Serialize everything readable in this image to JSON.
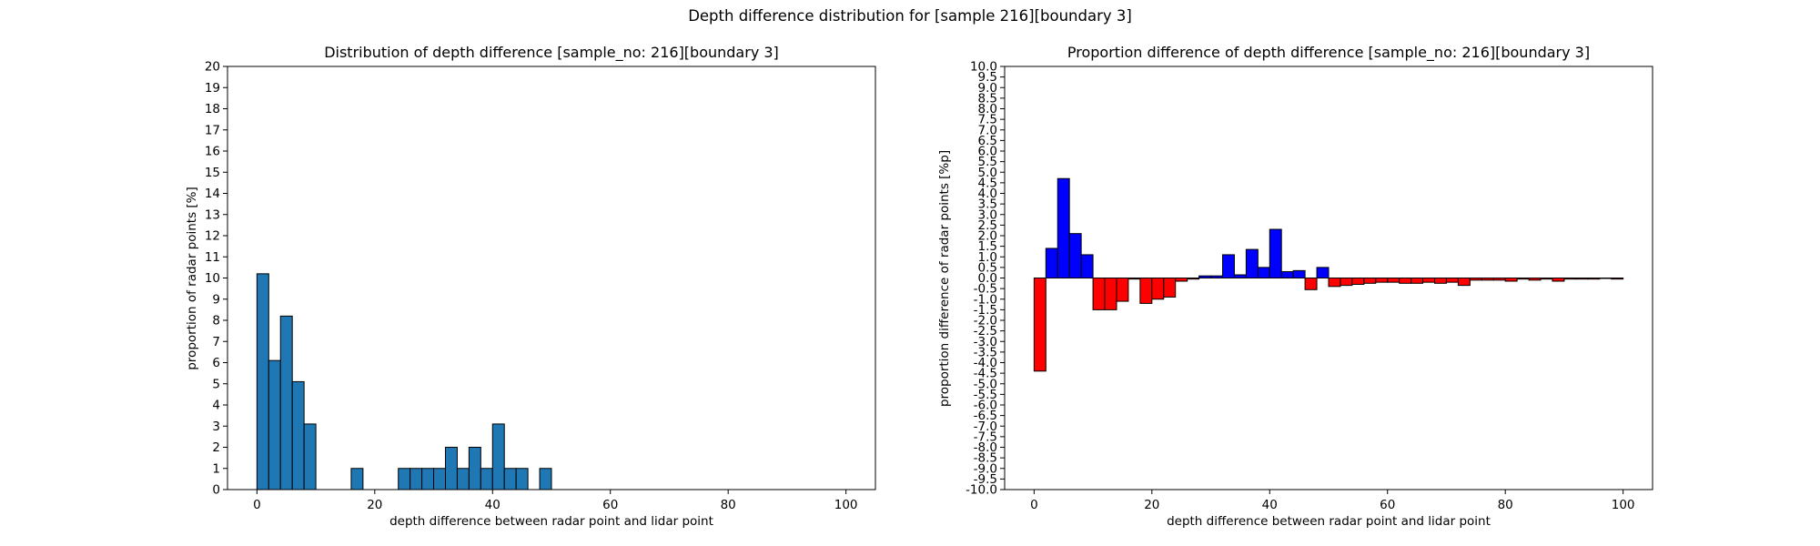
{
  "figure": {
    "suptitle": "Depth difference distribution for [sample 216][boundary 3]"
  },
  "chart_data": [
    {
      "type": "bar",
      "title": "Distribution of depth difference [sample_no: 216][boundary 3]",
      "xlabel": "depth difference between radar point and lidar point",
      "ylabel": "proportion of radar points [%]",
      "xlim": [
        -5,
        105
      ],
      "ylim": [
        0,
        20
      ],
      "xticks": [
        0,
        20,
        40,
        60,
        80,
        100
      ],
      "yticks": [
        0,
        1,
        2,
        3,
        4,
        5,
        6,
        7,
        8,
        9,
        10,
        11,
        12,
        13,
        14,
        15,
        16,
        17,
        18,
        19,
        20
      ],
      "bin_width": 2,
      "bar_color": "#1f77b4",
      "edge_color": "#000000",
      "bins": [
        {
          "x": 0,
          "value": 10.2
        },
        {
          "x": 2,
          "value": 6.1
        },
        {
          "x": 4,
          "value": 8.2
        },
        {
          "x": 6,
          "value": 5.1
        },
        {
          "x": 8,
          "value": 3.1
        },
        {
          "x": 16,
          "value": 1.0
        },
        {
          "x": 24,
          "value": 1.0
        },
        {
          "x": 26,
          "value": 1.0
        },
        {
          "x": 28,
          "value": 1.0
        },
        {
          "x": 30,
          "value": 1.0
        },
        {
          "x": 32,
          "value": 2.0
        },
        {
          "x": 34,
          "value": 1.0
        },
        {
          "x": 36,
          "value": 2.0
        },
        {
          "x": 38,
          "value": 1.0
        },
        {
          "x": 40,
          "value": 3.1
        },
        {
          "x": 42,
          "value": 1.0
        },
        {
          "x": 44,
          "value": 1.0
        },
        {
          "x": 48,
          "value": 1.0
        }
      ]
    },
    {
      "type": "bar",
      "title": "Proportion difference of depth difference [sample_no: 216][boundary 3]",
      "xlabel": "depth difference between radar point and lidar point",
      "ylabel": "proportion difference of radar points [%p]",
      "xlim": [
        -5,
        105
      ],
      "ylim": [
        -10,
        10
      ],
      "xticks": [
        0,
        20,
        40,
        60,
        80,
        100
      ],
      "yticks": [
        -10.0,
        -9.5,
        -9.0,
        -8.5,
        -8.0,
        -7.5,
        -7.0,
        -6.5,
        -6.0,
        -5.5,
        -5.0,
        -4.5,
        -4.0,
        -3.5,
        -3.0,
        -2.5,
        -2.0,
        -1.5,
        -1.0,
        -0.5,
        0.0,
        0.5,
        1.0,
        1.5,
        2.0,
        2.5,
        3.0,
        3.5,
        4.0,
        4.5,
        5.0,
        5.5,
        6.0,
        6.5,
        7.0,
        7.5,
        8.0,
        8.5,
        9.0,
        9.5,
        10.0
      ],
      "bin_width": 2,
      "positive_color": "#0000ff",
      "negative_color": "#ff0000",
      "edge_color": "#000000",
      "bins": [
        {
          "x": 0,
          "value": -4.4
        },
        {
          "x": 2,
          "value": 1.4
        },
        {
          "x": 4,
          "value": 4.7
        },
        {
          "x": 6,
          "value": 2.1
        },
        {
          "x": 8,
          "value": 1.1
        },
        {
          "x": 10,
          "value": -1.5
        },
        {
          "x": 12,
          "value": -1.5
        },
        {
          "x": 14,
          "value": -1.1
        },
        {
          "x": 16,
          "value": -0.05
        },
        {
          "x": 18,
          "value": -1.2
        },
        {
          "x": 20,
          "value": -1.0
        },
        {
          "x": 22,
          "value": -0.9
        },
        {
          "x": 24,
          "value": -0.15
        },
        {
          "x": 26,
          "value": -0.05
        },
        {
          "x": 28,
          "value": 0.1
        },
        {
          "x": 30,
          "value": 0.1
        },
        {
          "x": 32,
          "value": 1.1
        },
        {
          "x": 34,
          "value": 0.15
        },
        {
          "x": 36,
          "value": 1.35
        },
        {
          "x": 38,
          "value": 0.5
        },
        {
          "x": 40,
          "value": 2.3
        },
        {
          "x": 42,
          "value": 0.3
        },
        {
          "x": 44,
          "value": 0.35
        },
        {
          "x": 46,
          "value": -0.55
        },
        {
          "x": 48,
          "value": 0.5
        },
        {
          "x": 50,
          "value": -0.4
        },
        {
          "x": 52,
          "value": -0.35
        },
        {
          "x": 54,
          "value": -0.3
        },
        {
          "x": 56,
          "value": -0.25
        },
        {
          "x": 58,
          "value": -0.2
        },
        {
          "x": 60,
          "value": -0.2
        },
        {
          "x": 62,
          "value": -0.25
        },
        {
          "x": 64,
          "value": -0.25
        },
        {
          "x": 66,
          "value": -0.2
        },
        {
          "x": 68,
          "value": -0.25
        },
        {
          "x": 70,
          "value": -0.2
        },
        {
          "x": 72,
          "value": -0.35
        },
        {
          "x": 74,
          "value": -0.1
        },
        {
          "x": 76,
          "value": -0.1
        },
        {
          "x": 78,
          "value": -0.1
        },
        {
          "x": 80,
          "value": -0.15
        },
        {
          "x": 82,
          "value": -0.05
        },
        {
          "x": 84,
          "value": -0.1
        },
        {
          "x": 86,
          "value": -0.05
        },
        {
          "x": 88,
          "value": -0.15
        },
        {
          "x": 90,
          "value": -0.05
        },
        {
          "x": 92,
          "value": -0.05
        },
        {
          "x": 94,
          "value": -0.05
        },
        {
          "x": 96,
          "value": -0.02
        },
        {
          "x": 98,
          "value": -0.05
        }
      ]
    }
  ]
}
